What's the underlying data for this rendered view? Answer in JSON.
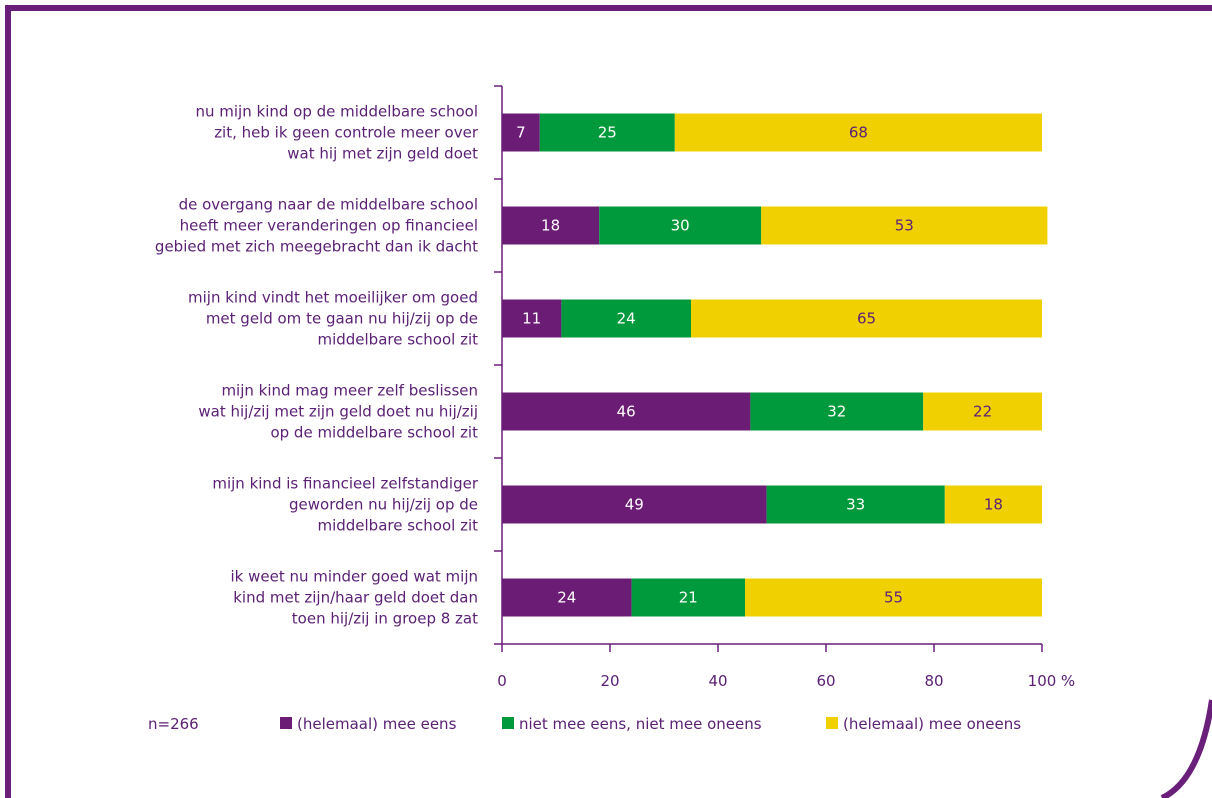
{
  "colors": {
    "frame": "#6a1f7a",
    "text": "#5b2175",
    "axis": "#6a1f7a",
    "agree": "#6b1c74",
    "neutral": "#009a3d",
    "disagree": "#f0d000",
    "label_on_dark": "#ffffff",
    "label_on_yellow": "#5b2175"
  },
  "sample_note": "n=266",
  "unit": "%",
  "chart_data": {
    "type": "bar",
    "orientation": "horizontal",
    "stacked": true,
    "xlim": [
      0,
      100
    ],
    "x_ticks": [
      0,
      20,
      40,
      60,
      80,
      100
    ],
    "legend_position": "bottom",
    "categories": [
      [
        "nu mijn kind op de middelbare school",
        "zit, heb ik geen controle meer over",
        "wat hij met zijn geld doet"
      ],
      [
        "de overgang naar de middelbare school",
        "heeft meer veranderingen op financieel",
        "gebied met zich meegebracht dan ik dacht"
      ],
      [
        "mijn kind vindt het moeilijker om goed",
        "met geld om te gaan nu hij/zij op de",
        "middelbare school zit"
      ],
      [
        "mijn kind mag meer zelf beslissen",
        "wat hij/zij met zijn geld doet nu hij/zij",
        "op de middelbare school zit"
      ],
      [
        "mijn kind is financieel zelfstandiger",
        "geworden nu hij/zij op de",
        "middelbare school zit"
      ],
      [
        "ik weet nu minder goed wat mijn",
        "kind met zijn/haar geld doet dan",
        "toen hij/zij in groep 8 zat"
      ]
    ],
    "series": [
      {
        "name": "(helemaal) mee eens",
        "color": "#6b1c74",
        "values": [
          7,
          18,
          11,
          46,
          49,
          24
        ]
      },
      {
        "name": "niet mee eens, niet mee oneens",
        "color": "#009a3d",
        "values": [
          25,
          30,
          24,
          32,
          33,
          21
        ]
      },
      {
        "name": "(helemaal) mee oneens",
        "color": "#f0d000",
        "values": [
          68,
          53,
          65,
          22,
          18,
          55
        ]
      }
    ]
  }
}
